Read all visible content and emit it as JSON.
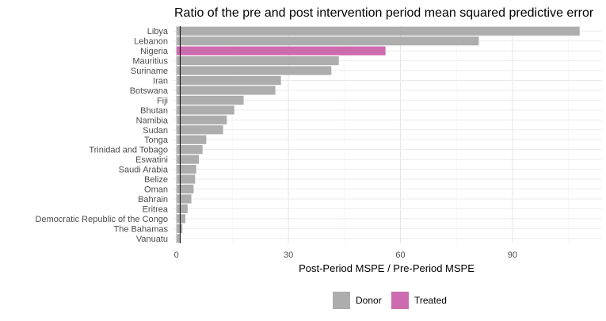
{
  "chart_data": {
    "type": "bar",
    "orientation": "horizontal",
    "title": "Ratio of the pre and post intervention period mean squared predictive error",
    "xlabel": "Post-Period MSPE / Pre-Period MSPE",
    "ylabel": "",
    "xlim": [
      -1,
      114
    ],
    "xticks": [
      0,
      30,
      60,
      90
    ],
    "grid": true,
    "legend_position": "bottom",
    "reference_line_x": 1,
    "categories": [
      "Libya",
      "Lebanon",
      "Nigeria",
      "Mauritius",
      "Suriname",
      "Iran",
      "Botswana",
      "Fiji",
      "Bhutan",
      "Namibia",
      "Sudan",
      "Tonga",
      "Trinidad and Tobago",
      "Eswatini",
      "Saudi Arabia",
      "Belize",
      "Oman",
      "Bahrain",
      "Eritrea",
      "Democratic Republic of the Congo",
      "The Bahamas",
      "Vanuatu"
    ],
    "values": [
      108,
      81,
      56,
      43.5,
      41.5,
      28,
      26.5,
      18,
      15.5,
      13.5,
      12.5,
      8,
      7,
      6,
      5.3,
      5,
      4.6,
      4,
      3,
      2.4,
      1.6,
      0.9
    ],
    "groups": [
      "Donor",
      "Donor",
      "Treated",
      "Donor",
      "Donor",
      "Donor",
      "Donor",
      "Donor",
      "Donor",
      "Donor",
      "Donor",
      "Donor",
      "Donor",
      "Donor",
      "Donor",
      "Donor",
      "Donor",
      "Donor",
      "Donor",
      "Donor",
      "Donor",
      "Donor"
    ],
    "legend": [
      {
        "name": "Donor",
        "color": "#ADADAD"
      },
      {
        "name": "Treated",
        "color": "#CC6BAE"
      }
    ]
  }
}
